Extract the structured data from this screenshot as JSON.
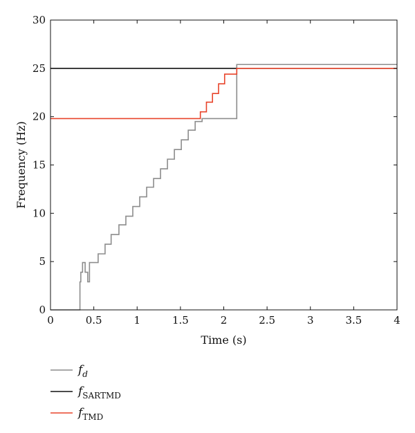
{
  "chart_data": {
    "type": "line",
    "title": "",
    "xlabel": "Time (s)",
    "ylabel": "Frequency (Hz)",
    "xlim": [
      0,
      4
    ],
    "ylim": [
      0,
      30
    ],
    "xticks": [
      0,
      0.5,
      1,
      1.5,
      2,
      2.5,
      3,
      3.5,
      4
    ],
    "yticks": [
      0,
      5,
      10,
      15,
      20,
      25,
      30
    ],
    "xtick_labels": [
      "0",
      "0.5",
      "1",
      "1.5",
      "2",
      "2.5",
      "3",
      "3.5",
      "4"
    ],
    "ytick_labels": [
      "0",
      "5",
      "10",
      "15",
      "20",
      "25",
      "30"
    ],
    "grid": false,
    "legend_position": "bottom-left",
    "series": [
      {
        "name": "f_d",
        "legend_main": "f",
        "legend_sub": "d",
        "color": "#8c8c8c",
        "step": true,
        "x": [
          0,
          0.34,
          0.35,
          0.37,
          0.4,
          0.43,
          0.45,
          0.55,
          0.63,
          0.7,
          0.79,
          0.87,
          0.95,
          1.03,
          1.11,
          1.19,
          1.27,
          1.35,
          1.43,
          1.51,
          1.59,
          1.67,
          1.75,
          2.15,
          4.0
        ],
        "y": [
          0,
          2.9,
          3.9,
          4.9,
          3.9,
          2.9,
          4.9,
          5.8,
          6.8,
          7.8,
          8.8,
          9.7,
          10.7,
          11.7,
          12.7,
          13.6,
          14.6,
          15.6,
          16.6,
          17.6,
          18.6,
          19.5,
          19.8,
          25.4,
          25.4
        ]
      },
      {
        "name": "f_SARTMD",
        "legend_main": "f",
        "legend_sub": "SARTMD",
        "color": "#111111",
        "step": true,
        "x": [
          0,
          4.0
        ],
        "y": [
          25,
          25
        ]
      },
      {
        "name": "f_TMD",
        "legend_main": "f",
        "legend_sub": "TMD",
        "color": "#e8432a",
        "step": true,
        "x": [
          0,
          1.73,
          1.8,
          1.87,
          1.94,
          2.01,
          2.08,
          2.15,
          4.0
        ],
        "y": [
          19.8,
          20.5,
          21.5,
          22.4,
          23.4,
          24.4,
          24.4,
          25.0,
          25.0
        ]
      }
    ]
  }
}
